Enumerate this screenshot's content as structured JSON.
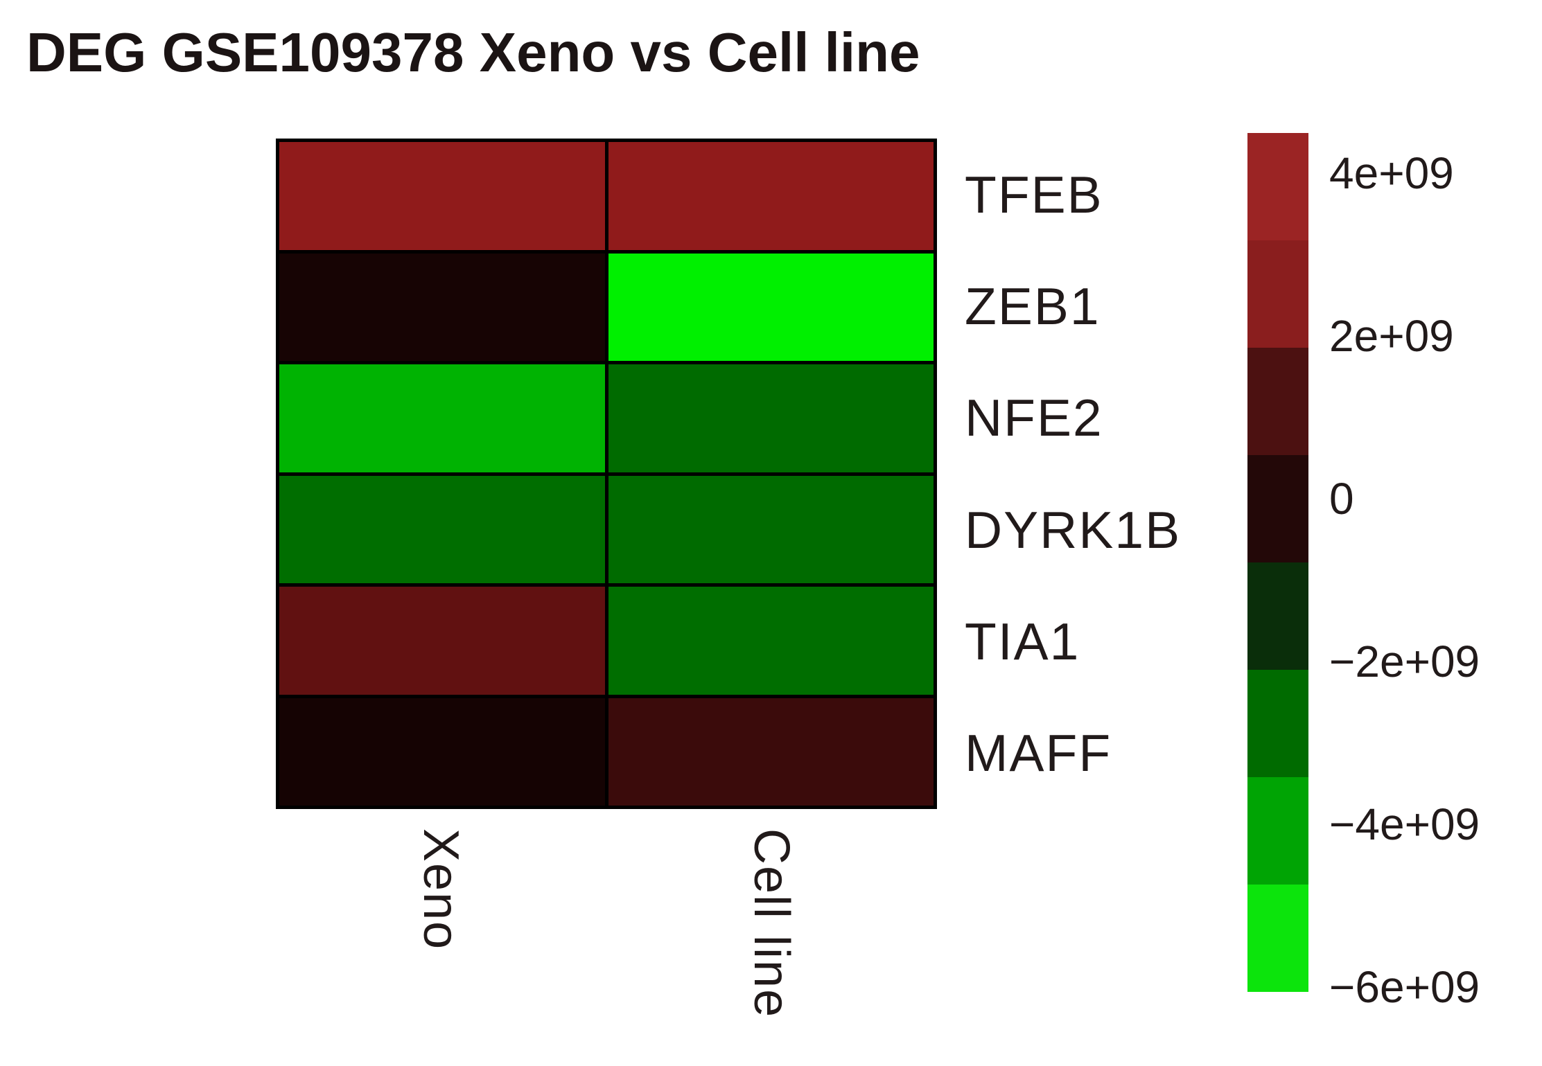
{
  "title": "DEG GSE109378 Xeno vs Cell line",
  "chart_data": {
    "type": "heatmap",
    "title": "DEG GSE109378 Xeno vs Cell line",
    "columns": [
      "Xeno",
      "Cell line"
    ],
    "rows": [
      "TFEB",
      "ZEB1",
      "NFE2",
      "DYRK1B",
      "TIA1",
      "MAFF"
    ],
    "values_estimated": [
      [
        4000000000.0,
        4000000000.0
      ],
      [
        -100000000.0,
        -6500000000.0
      ],
      [
        -5000000000.0,
        -3500000000.0
      ],
      [
        -3500000000.0,
        -3500000000.0
      ],
      [
        1500000000.0,
        -3500000000.0
      ],
      [
        -300000000.0,
        800000000.0
      ]
    ],
    "cell_colors": [
      [
        "#901B1B",
        "#901B1B"
      ],
      [
        "#170404",
        "#00F000"
      ],
      [
        "#00B302",
        "#006B00"
      ],
      [
        "#006E00",
        "#006B00"
      ],
      [
        "#611111",
        "#006E00"
      ],
      [
        "#150303",
        "#3B0B0B"
      ]
    ],
    "cell_border_color": "#000000",
    "colorbar": {
      "orientation": "vertical",
      "tick_labels": [
        "4e+09",
        "2e+09",
        "0",
        "−2e+09",
        "−4e+09",
        "−6e+09"
      ],
      "value_range": [
        -7200000000.0,
        4800000000.0
      ],
      "block_colors_top_to_bottom": [
        "#9B2424",
        "#8A1E1E",
        "#4C1111",
        "#230808",
        "#0A2E0A",
        "#006B00",
        "#00A404",
        "#0CE40C"
      ]
    }
  }
}
